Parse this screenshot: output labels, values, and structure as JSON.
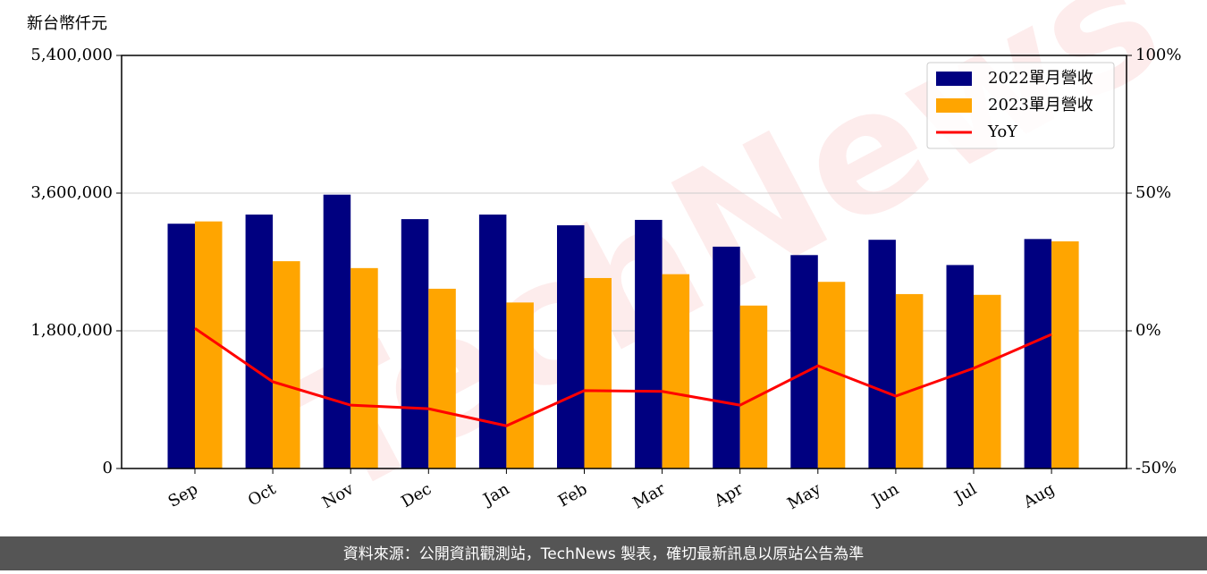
{
  "chart_data": {
    "type": "bar_line",
    "ylabel": "新台幣仟元",
    "watermark": "TechNews",
    "footer": "資料來源：公開資訊觀測站，TechNews 製表，確切最新訊息以原站公告為準",
    "categories": [
      "Sep",
      "Oct",
      "Nov",
      "Dec",
      "Jan",
      "Feb",
      "Mar",
      "Apr",
      "May",
      "Jun",
      "Jul",
      "Aug"
    ],
    "series": [
      {
        "name": "2022單月營收",
        "color": "#000080",
        "values": [
          3200000,
          3320000,
          3580000,
          3260000,
          3320000,
          3180000,
          3250000,
          2900000,
          2790000,
          2990000,
          2660000,
          3000000
        ]
      },
      {
        "name": "2023單月營收",
        "color": "#ffa500",
        "values": [
          3230000,
          2710000,
          2620000,
          2350000,
          2170000,
          2490000,
          2540000,
          2130000,
          2440000,
          2280000,
          2270000,
          2970000
        ]
      },
      {
        "name": "YoY",
        "color": "#ff0000",
        "axis": "y2",
        "values": [
          0.9,
          -18.5,
          -27,
          -28.3,
          -34.5,
          -21.7,
          -22,
          -27,
          -12.7,
          -23.7,
          -13.6,
          -1.3
        ]
      }
    ],
    "ylim": [
      0,
      5400000
    ],
    "yticks": [
      0,
      {
        "value": 1800000,
        "label": "1,800,000"
      },
      {
        "value": 3600000,
        "label": "3,600,000"
      },
      {
        "value": 5400000,
        "label": "5,400,000"
      }
    ],
    "y2lim": [
      -50,
      100
    ],
    "y2ticks": [
      {
        "value": -50,
        "label": "-50%"
      },
      {
        "value": 0,
        "label": "0%"
      },
      {
        "value": 50,
        "label": "50%"
      },
      {
        "value": 100,
        "label": "100%"
      }
    ],
    "grid": true,
    "legend": "upper right"
  }
}
